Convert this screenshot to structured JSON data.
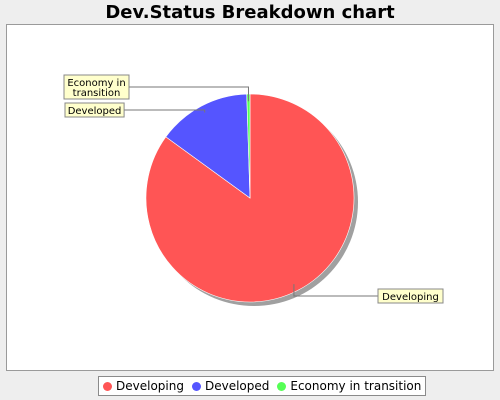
{
  "chart_data": {
    "type": "pie",
    "title": "Dev.Status Breakdown chart",
    "slices": [
      {
        "label": "Developing",
        "value": 85,
        "color": "#ff5555"
      },
      {
        "label": "Developed",
        "value": 14.5,
        "color": "#5555ff"
      },
      {
        "label": "Economy in transition",
        "value": 0.5,
        "color": "#55ff55"
      }
    ],
    "slice_labels": [
      {
        "lines": [
          "Developing"
        ]
      },
      {
        "lines": [
          "Developed"
        ]
      },
      {
        "lines": [
          "Economy in",
          "transition"
        ]
      }
    ],
    "legend": {
      "position": "bottom",
      "items": [
        {
          "label": "Developing",
          "color": "#ff5555"
        },
        {
          "label": "Developed",
          "color": "#5555ff"
        },
        {
          "label": "Economy in transition",
          "color": "#55ff55"
        }
      ]
    }
  }
}
